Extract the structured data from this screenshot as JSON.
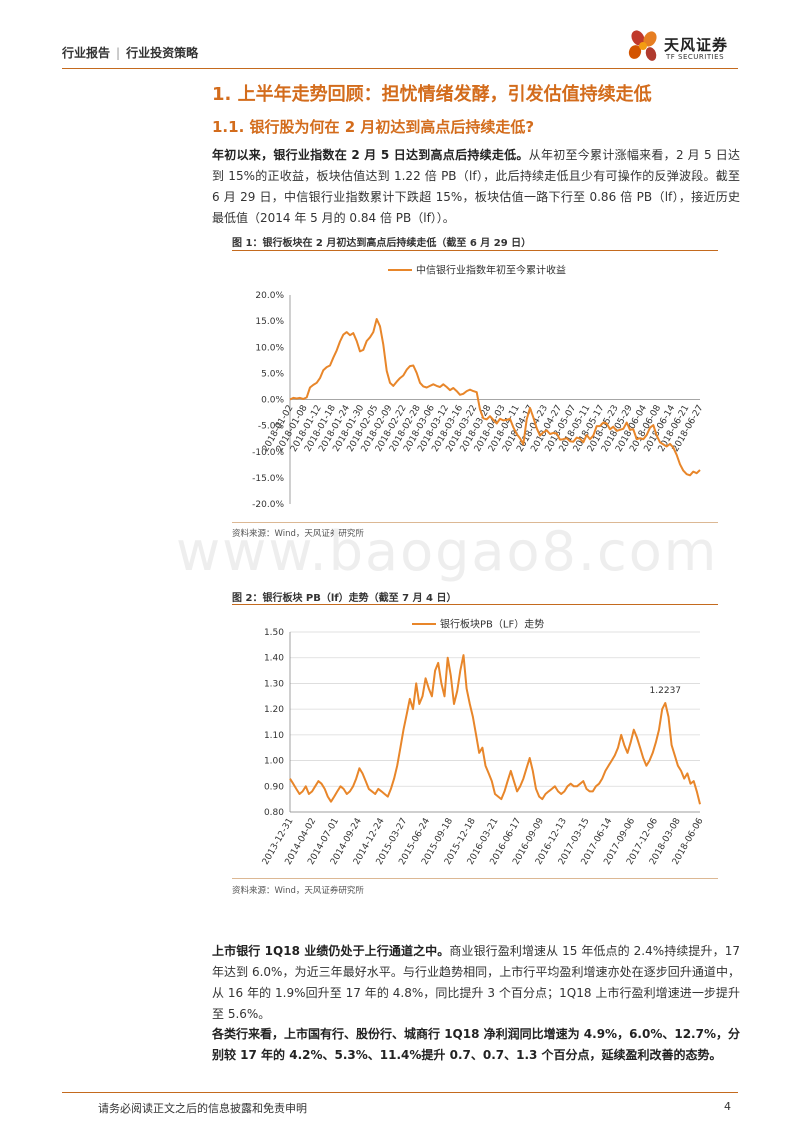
{
  "header": {
    "left": "行业报告",
    "right": "行业投资策略"
  },
  "logo": {
    "name": "天风证券",
    "sub": "TF SECURITIES"
  },
  "colors": {
    "accent": "#d36c1c",
    "line": "#e8862a",
    "rule": "#c46a1e"
  },
  "watermark": "www.baogao8.com",
  "section": {
    "h1": "1. 上半年走势回顾：担忧情绪发酵，引发估值持续走低",
    "h2": "1.1. 银行股为何在 2 月初达到高点后持续走低?"
  },
  "paras": {
    "p1_bold": "年初以来，银行业指数在 2 月 5 日达到高点后持续走低。",
    "p1_rest": "从年初至今累计涨幅来看，2 月 5 日达到 15%的正收益，板块估值达到 1.22 倍 PB（lf），此后持续走低且少有可操作的反弹波段。截至 6 月 29 日，中信银行业指数累计下跌超 15%，板块估值一路下行至 0.86 倍 PB（lf），接近历史最低值（2014 年 5 月的 0.84 倍 PB（lf））。",
    "p2_bold": "上市银行 1Q18 业绩仍处于上行通道之中。",
    "p2_rest": "商业银行盈利增速从 15 年低点的 2.4%持续提升，17 年达到 6.0%，为近三年最好水平。与行业趋势相同，上市行平均盈利增速亦处在逐步回升通道中，从 16 年的 1.9%回升至 17 年的 4.8%，同比提升 3 个百分点；1Q18 上市行盈利增速进一步提升至 5.6%。",
    "p3_bold": "各类行来看，上市国有行、股份行、城商行 1Q18 净利润同比增速为 4.9%，6.0%、12.7%，分别较 17 年的 4.2%、5.3%、11.4%提升 0.7、0.7、1.3 个百分点，延续盈利改善的态势。"
  },
  "fig1": {
    "title": "图 1：银行板块在 2 月初达到高点后持续走低（截至 6 月 29 日）",
    "source": "资料来源：Wind，天风证券研究所"
  },
  "fig2": {
    "title": "图 2：银行板块 PB（lf）走势（截至 7 月 4 日）",
    "source": "资料来源：Wind，天风证券研究所"
  },
  "chart_data": [
    {
      "type": "line",
      "title": "",
      "series": [
        {
          "name": "中信银行业指数年初至今累计收益",
          "values": [
            0,
            0.3,
            0.2,
            0.3,
            0.1,
            0.4,
            2.3,
            2.8,
            3.2,
            4.1,
            5.6,
            6.2,
            6.5,
            8.0,
            9.4,
            11.1,
            12.4,
            12.9,
            12.3,
            12.7,
            11.2,
            9.2,
            9.5,
            11.2,
            11.9,
            12.9,
            15.4,
            14.0,
            10.5,
            5.5,
            3.2,
            2.6,
            3.4,
            4.1,
            4.6,
            5.7,
            6.4,
            6.5,
            5.1,
            3.2,
            2.5,
            2.3,
            2.6,
            2.9,
            2.6,
            2.4,
            2.9,
            2.4,
            1.8,
            2.2,
            1.6,
            0.9,
            1.1,
            1.6,
            1.9,
            1.6,
            1.4,
            -1.9,
            -3.6,
            -3.8,
            -3.2,
            -3.9,
            -4.6,
            -3.7,
            -4.0,
            -3.9,
            -3.7,
            -5.3,
            -6.6,
            -7.4,
            -8.6,
            -3.8,
            -1.6,
            -3.4,
            -5.5,
            -6.9,
            -6.3,
            -5.9,
            -6.6,
            -6.4,
            -6.5,
            -7.7,
            -7.6,
            -7.4,
            -8.0,
            -8.1,
            -7.3,
            -7.5,
            -8.2,
            -6.8,
            -7.6,
            -6.9,
            -5.1,
            -5.1,
            -4.4,
            -4.6,
            -5.7,
            -5.2,
            -6.0,
            -5.8,
            -5.6,
            -4.4,
            -5.8,
            -5.7,
            -7.6,
            -7.4,
            -7.6,
            -6.8,
            -5.4,
            -4.9,
            -6.9,
            -8.2,
            -8.6,
            -9.0,
            -8.5,
            -9.2,
            -10.6,
            -12.4,
            -13.6,
            -14.3,
            -14.5,
            -13.8,
            -14.1,
            -13.5
          ]
        }
      ],
      "x_ticks": [
        "2018-01-02",
        "2018-01-08",
        "2018-01-12",
        "2018-01-18",
        "2018-01-24",
        "2018-01-30",
        "2018-02-05",
        "2018-02-09",
        "2018-02-22",
        "2018-02-28",
        "2018-03-06",
        "2018-03-12",
        "2018-03-16",
        "2018-03-22",
        "2018-03-28",
        "2018-04-03",
        "2018-04-11",
        "2018-04-17",
        "2018-04-23",
        "2018-04-27",
        "2018-05-07",
        "2018-05-11",
        "2018-05-17",
        "2018-05-23",
        "2018-05-29",
        "2018-06-04",
        "2018-06-08",
        "2018-06-14",
        "2018-06-21",
        "2018-06-27"
      ],
      "y_ticks": [
        "20.0%",
        "15.0%",
        "10.0%",
        "5.0%",
        "0.0%",
        "-5.0%",
        "-10.0%",
        "-15.0%",
        "-20.0%"
      ],
      "ylim": [
        -20,
        20
      ],
      "legend": "top"
    },
    {
      "type": "line",
      "title": "",
      "series": [
        {
          "name": "银行板块PB（LF）走势",
          "values": [
            0.93,
            0.91,
            0.89,
            0.87,
            0.88,
            0.9,
            0.87,
            0.88,
            0.9,
            0.92,
            0.91,
            0.89,
            0.86,
            0.84,
            0.86,
            0.88,
            0.9,
            0.89,
            0.87,
            0.88,
            0.9,
            0.93,
            0.97,
            0.95,
            0.92,
            0.89,
            0.88,
            0.87,
            0.89,
            0.88,
            0.87,
            0.86,
            0.89,
            0.93,
            0.98,
            1.05,
            1.12,
            1.18,
            1.24,
            1.2,
            1.3,
            1.22,
            1.25,
            1.32,
            1.28,
            1.25,
            1.35,
            1.38,
            1.3,
            1.25,
            1.4,
            1.33,
            1.22,
            1.27,
            1.35,
            1.41,
            1.28,
            1.22,
            1.17,
            1.1,
            1.03,
            1.05,
            0.98,
            0.95,
            0.92,
            0.87,
            0.86,
            0.85,
            0.88,
            0.92,
            0.96,
            0.92,
            0.88,
            0.9,
            0.93,
            0.97,
            1.01,
            0.96,
            0.89,
            0.86,
            0.85,
            0.87,
            0.88,
            0.89,
            0.9,
            0.88,
            0.87,
            0.88,
            0.9,
            0.91,
            0.9,
            0.9,
            0.91,
            0.92,
            0.89,
            0.88,
            0.88,
            0.9,
            0.91,
            0.93,
            0.96,
            0.98,
            1.0,
            1.02,
            1.05,
            1.1,
            1.06,
            1.03,
            1.07,
            1.12,
            1.09,
            1.05,
            1.01,
            0.98,
            1.0,
            1.03,
            1.07,
            1.12,
            1.2,
            1.2237,
            1.17,
            1.06,
            1.02,
            0.98,
            0.96,
            0.93,
            0.95,
            0.91,
            0.92,
            0.88,
            0.83
          ]
        }
      ],
      "annotation": "1.2237",
      "x_ticks": [
        "2013-12-31",
        "2014-04-02",
        "2014-07-01",
        "2014-09-24",
        "2014-12-24",
        "2015-03-27",
        "2015-06-24",
        "2015-09-18",
        "2015-12-18",
        "2016-03-21",
        "2016-06-17",
        "2016-09-09",
        "2016-12-13",
        "2017-03-15",
        "2017-06-14",
        "2017-09-06",
        "2017-12-06",
        "2018-03-08",
        "2018-06-06"
      ],
      "y_ticks": [
        "1.50",
        "1.40",
        "1.30",
        "1.20",
        "1.10",
        "1.00",
        "0.90",
        "0.80"
      ],
      "ylim": [
        0.8,
        1.5
      ],
      "grid": true,
      "legend": "top"
    }
  ],
  "footer": {
    "text": "请务必阅读正文之后的信息披露和免责申明",
    "page": "4"
  }
}
